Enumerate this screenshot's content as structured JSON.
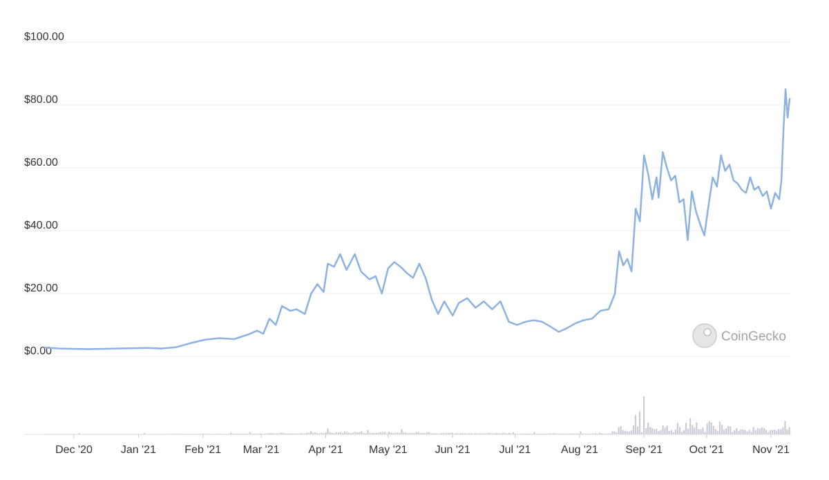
{
  "chart_data": {
    "type": "line",
    "y_ticks": [
      "$0.00",
      "$20.00",
      "$40.00",
      "$60.00",
      "$80.00",
      "$100.00"
    ],
    "ylim": [
      0,
      100
    ],
    "x_ticks": [
      "Dec '20",
      "Jan '21",
      "Feb '21",
      "Mar '21",
      "Apr '21",
      "May '21",
      "Jun '21",
      "Jul '21",
      "Aug '21",
      "Sep '21",
      "Oct '21",
      "Nov '21"
    ],
    "grid": true,
    "legend": "none",
    "line_color": "#8db1e0",
    "volume_color": "#c9ccd6",
    "x": [
      "2020-11-17",
      "2020-11-24",
      "2020-12-01",
      "2020-12-08",
      "2020-12-15",
      "2020-12-22",
      "2020-12-29",
      "2021-01-05",
      "2021-01-12",
      "2021-01-19",
      "2021-01-26",
      "2021-02-02",
      "2021-02-09",
      "2021-02-16",
      "2021-02-23",
      "2021-02-27",
      "2021-03-02",
      "2021-03-05",
      "2021-03-08",
      "2021-03-11",
      "2021-03-15",
      "2021-03-18",
      "2021-03-22",
      "2021-03-25",
      "2021-03-28",
      "2021-03-31",
      "2021-04-02",
      "2021-04-05",
      "2021-04-08",
      "2021-04-11",
      "2021-04-15",
      "2021-04-18",
      "2021-04-22",
      "2021-04-25",
      "2021-04-28",
      "2021-05-01",
      "2021-05-04",
      "2021-05-07",
      "2021-05-10",
      "2021-05-13",
      "2021-05-16",
      "2021-05-19",
      "2021-05-22",
      "2021-05-25",
      "2021-05-28",
      "2021-06-01",
      "2021-06-04",
      "2021-06-08",
      "2021-06-12",
      "2021-06-16",
      "2021-06-20",
      "2021-06-24",
      "2021-06-28",
      "2021-07-02",
      "2021-07-06",
      "2021-07-10",
      "2021-07-14",
      "2021-07-18",
      "2021-07-22",
      "2021-07-26",
      "2021-07-30",
      "2021-08-03",
      "2021-08-07",
      "2021-08-11",
      "2021-08-15",
      "2021-08-18",
      "2021-08-20",
      "2021-08-22",
      "2021-08-24",
      "2021-08-26",
      "2021-08-28",
      "2021-08-30",
      "2021-09-01",
      "2021-09-03",
      "2021-09-05",
      "2021-09-07",
      "2021-09-08",
      "2021-09-10",
      "2021-09-12",
      "2021-09-14",
      "2021-09-16",
      "2021-09-18",
      "2021-09-20",
      "2021-09-22",
      "2021-09-24",
      "2021-09-26",
      "2021-09-28",
      "2021-09-30",
      "2021-10-02",
      "2021-10-04",
      "2021-10-06",
      "2021-10-08",
      "2021-10-10",
      "2021-10-12",
      "2021-10-14",
      "2021-10-16",
      "2021-10-18",
      "2021-10-20",
      "2021-10-22",
      "2021-10-24",
      "2021-10-26",
      "2021-10-28",
      "2021-10-30",
      "2021-11-01",
      "2021-11-03",
      "2021-11-05",
      "2021-11-06",
      "2021-11-07",
      "2021-11-08",
      "2021-11-09",
      "2021-11-10"
    ],
    "values": [
      2.8,
      2.5,
      2.4,
      2.3,
      2.4,
      2.5,
      2.6,
      2.7,
      2.5,
      2.9,
      4.2,
      5.3,
      5.8,
      5.5,
      7.0,
      8.2,
      7.2,
      12.0,
      10.0,
      16.0,
      14.5,
      15.0,
      13.5,
      20.0,
      23.0,
      20.5,
      29.5,
      28.5,
      32.5,
      27.5,
      32.5,
      27.0,
      24.5,
      25.5,
      20.0,
      28.0,
      30.0,
      28.5,
      26.5,
      25.0,
      29.5,
      25.0,
      18.0,
      13.5,
      17.5,
      13.0,
      17.0,
      18.5,
      15.5,
      17.5,
      15.0,
      17.5,
      11.0,
      10.0,
      11.0,
      11.5,
      11.0,
      9.5,
      7.8,
      9.0,
      10.5,
      11.5,
      12.0,
      14.5,
      15.0,
      20.0,
      33.5,
      29.0,
      31.0,
      27.0,
      47.0,
      43.0,
      64.0,
      58.0,
      50.0,
      57.0,
      50.5,
      65.0,
      60.0,
      56.0,
      57.5,
      49.0,
      50.0,
      37.0,
      52.5,
      46.0,
      42.0,
      38.5,
      48.0,
      57.0,
      54.0,
      64.0,
      59.0,
      61.0,
      56.0,
      55.0,
      53.0,
      52.0,
      57.0,
      53.0,
      54.0,
      51.0,
      52.5,
      47.0,
      52.0,
      50.0,
      56.0,
      72.0,
      85.0,
      76.0,
      82.0
    ]
  },
  "watermark": {
    "text": "CoinGecko"
  }
}
